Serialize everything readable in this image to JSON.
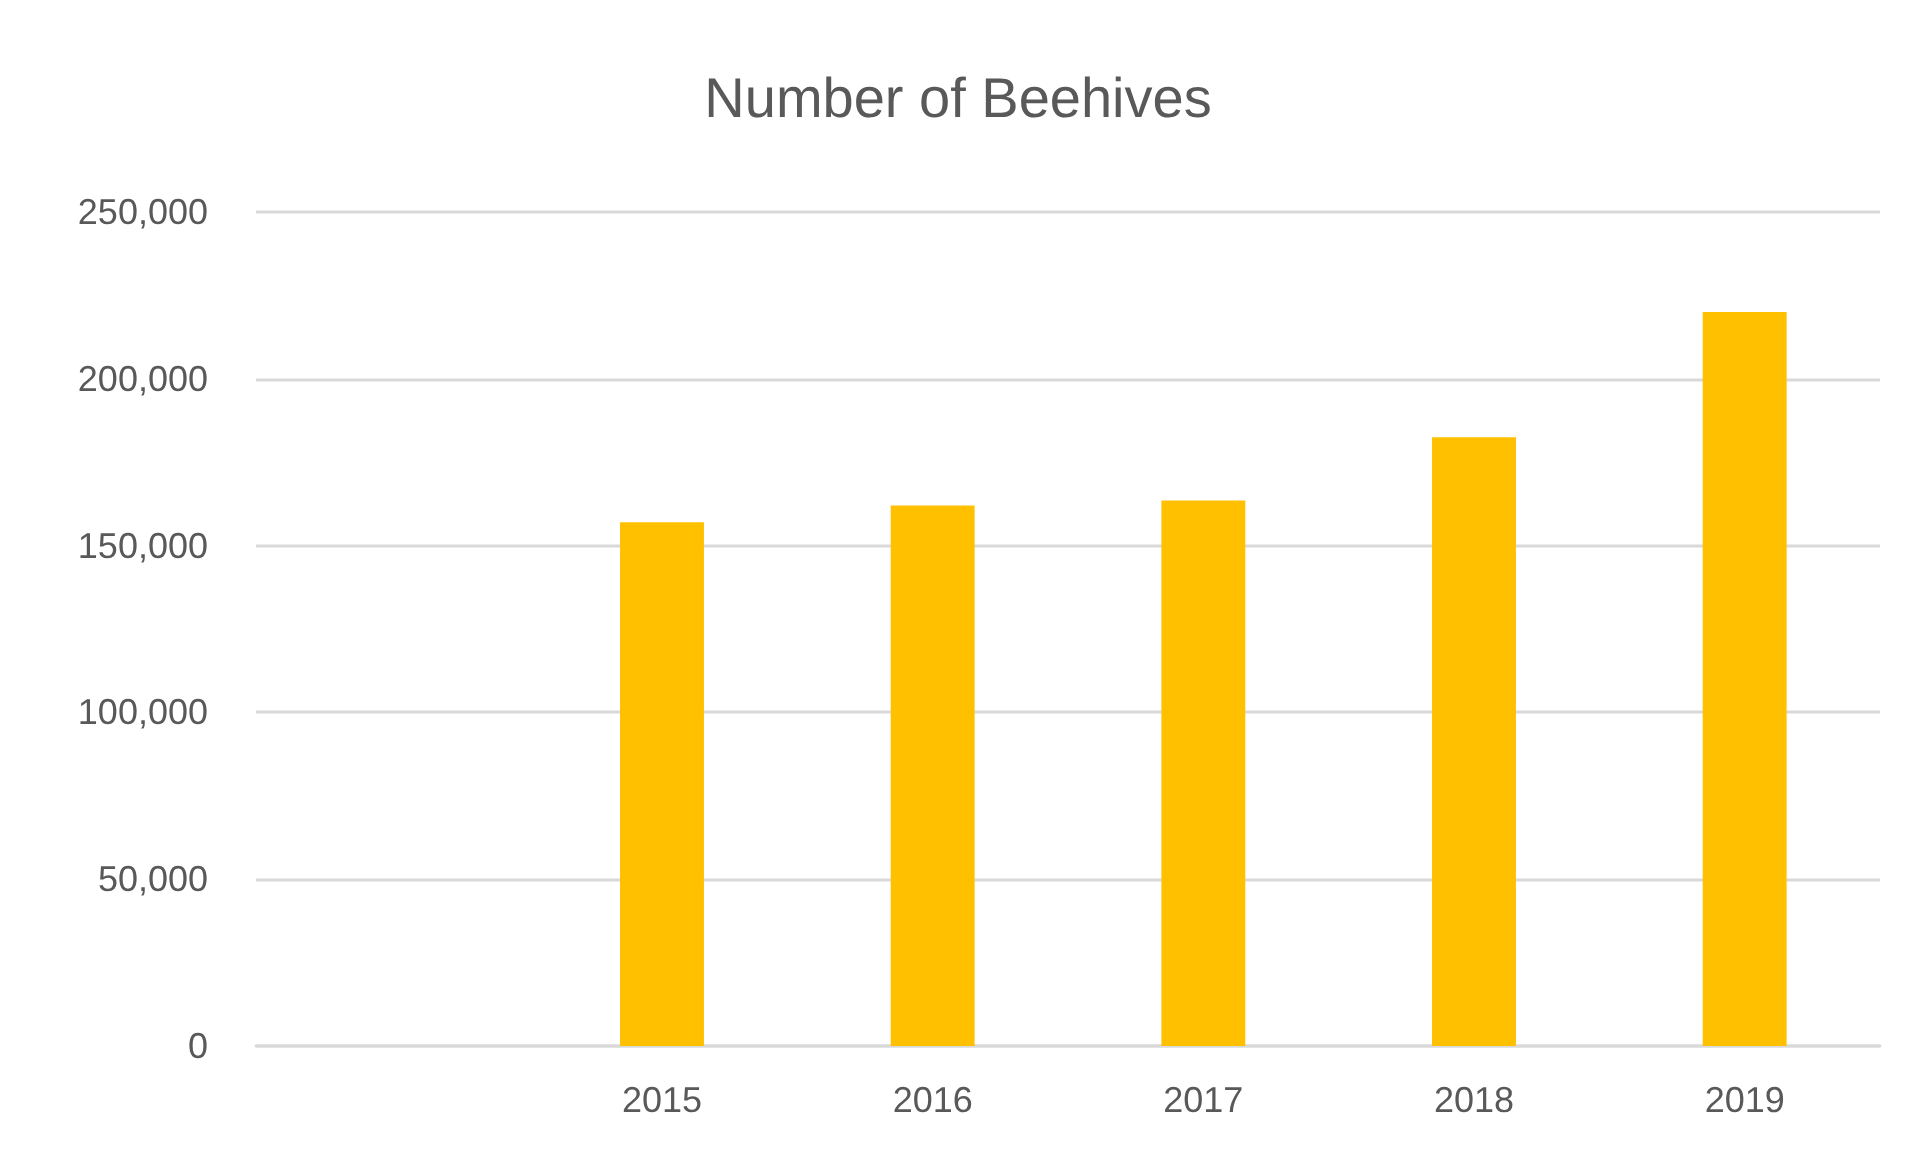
{
  "chart_data": {
    "type": "bar",
    "title": "Number of Beehives",
    "categories": [
      null,
      "2015",
      "2016",
      "2017",
      "2018",
      "2019"
    ],
    "values": [
      null,
      157000,
      162000,
      163500,
      182500,
      220000
    ],
    "color": "#ffc000",
    "ylim": [
      0,
      250000
    ],
    "yticks": [
      0,
      {
        "value": 50000,
        "label": "50,000"
      },
      {
        "value": 100000,
        "label": "100,000"
      },
      {
        "value": 150000,
        "label": "150,000"
      },
      {
        "value": 200000,
        "label": "200,000"
      },
      {
        "value": 250000,
        "label": "250,000"
      }
    ],
    "grid": "y"
  }
}
